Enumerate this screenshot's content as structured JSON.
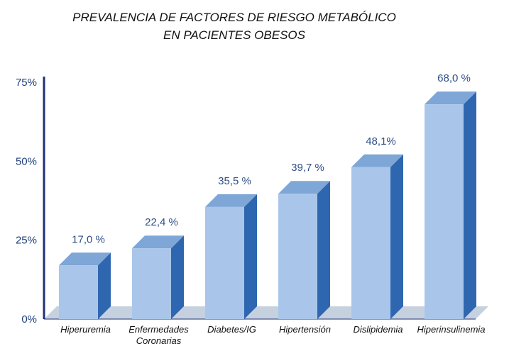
{
  "chart_data": {
    "type": "bar",
    "title_lines": [
      "PREVALENCIA DE FACTORES DE RIESGO METABÓLICO",
      "EN PACIENTES OBESOS"
    ],
    "categories": [
      [
        "Hiperuremia"
      ],
      [
        "Enfermedades",
        "Coronarias"
      ],
      [
        "Diabetes/IG"
      ],
      [
        "Hipertensión"
      ],
      [
        "Dislipidemia"
      ],
      [
        "Hiperinsulinemia"
      ]
    ],
    "values": [
      17.0,
      22.4,
      35.5,
      39.7,
      48.1,
      68.0
    ],
    "value_labels": [
      "17,0 %",
      "22,4 %",
      "35,5 %",
      "39,7 %",
      "48,1%",
      "68,0 %"
    ],
    "yticks": [
      {
        "value": 0,
        "label": "0%"
      },
      {
        "value": 25,
        "label": "25%"
      },
      {
        "value": 50,
        "label": "50%"
      },
      {
        "value": 75,
        "label": "75%"
      }
    ],
    "ylim": [
      0,
      75
    ],
    "colors": {
      "bar_front": "#a9c6ea",
      "bar_top": "#7ea6d6",
      "bar_side": "#2f66b0",
      "floor": "#c6d1df",
      "axis": "#1f2f7a"
    }
  }
}
